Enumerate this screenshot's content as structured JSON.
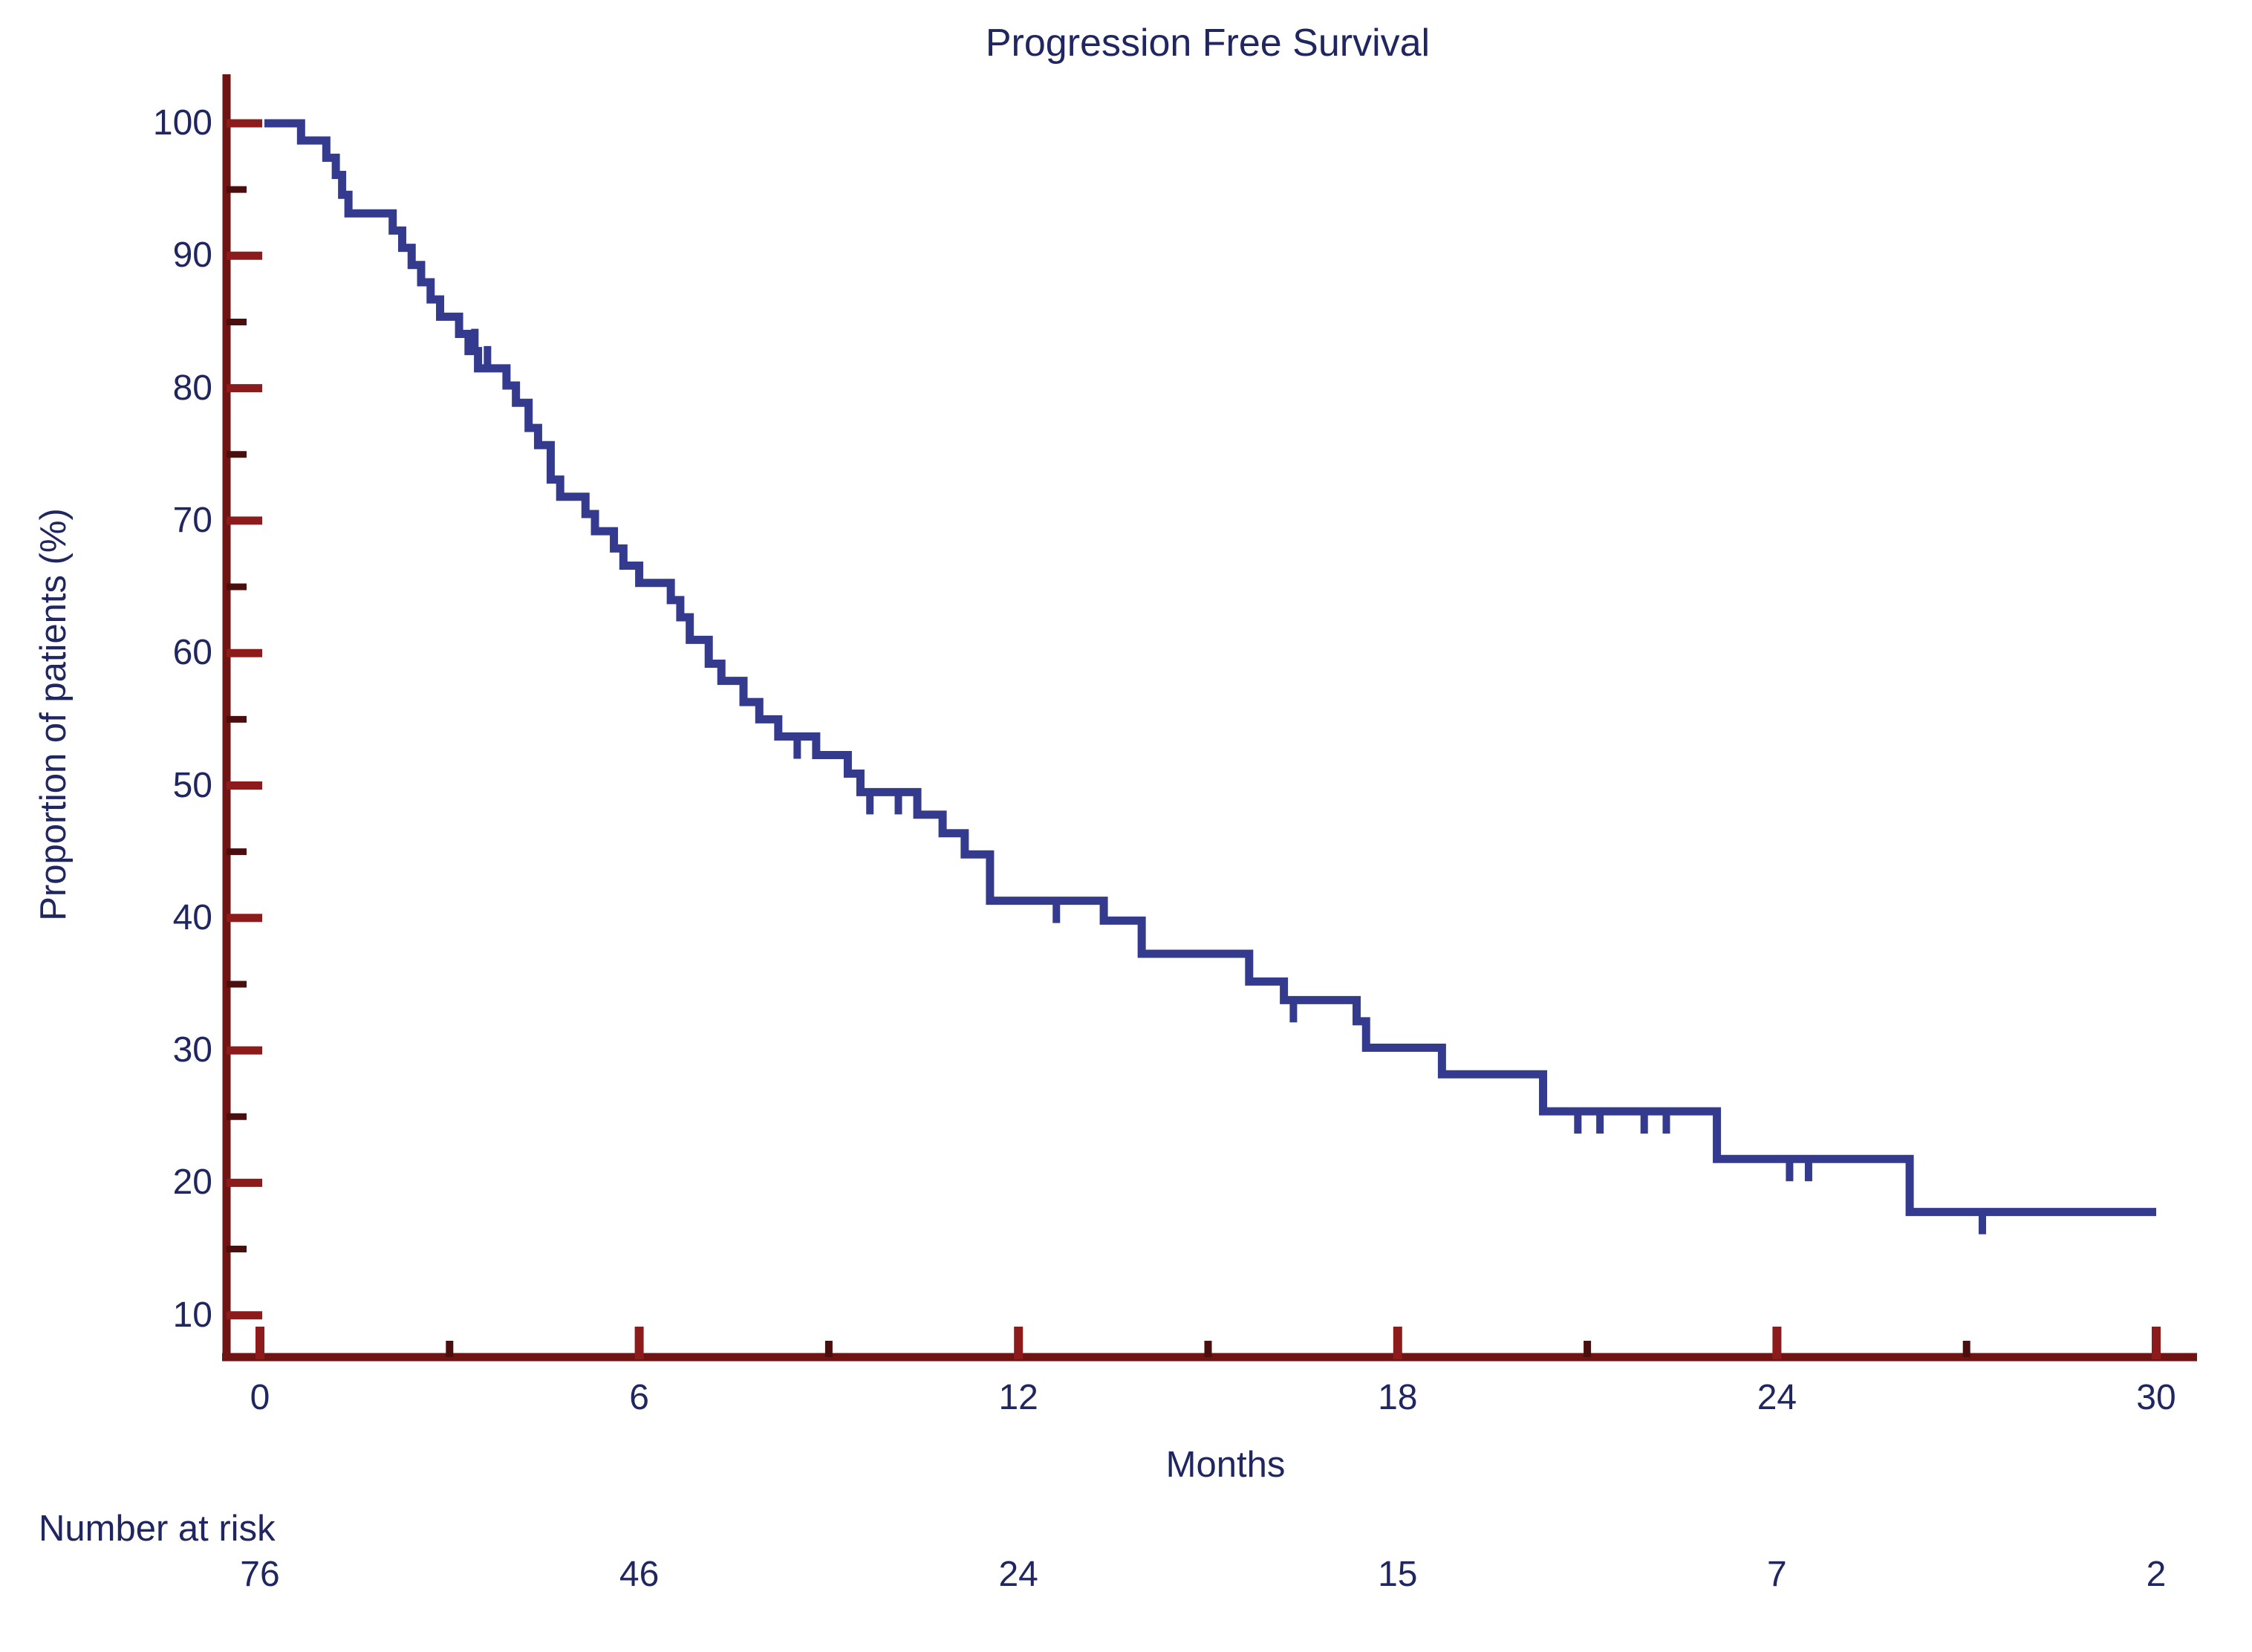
{
  "title": "Progression Free Survival",
  "y_axis": {
    "label": "Proportion of patients (%)",
    "major_ticks": [
      100,
      90,
      80,
      70,
      60,
      50,
      40,
      30,
      20,
      10
    ],
    "minor_ticks": [
      95,
      85,
      75,
      65,
      55,
      45,
      35,
      25,
      15
    ]
  },
  "x_axis": {
    "label": "Months",
    "major_ticks": [
      0,
      6,
      12,
      18,
      24,
      30
    ],
    "minor_ticks": [
      3,
      9,
      15,
      21,
      27
    ]
  },
  "number_at_risk": {
    "label": "Number at risk",
    "times": [
      0,
      6,
      12,
      18,
      24,
      30
    ],
    "values": [
      76,
      46,
      24,
      15,
      7,
      2
    ]
  },
  "colors": {
    "curve": "#343a8e",
    "axis": "#701313",
    "major_tick": "#8e1b1b",
    "minor_tick": "#4c0d0d",
    "text": "#20265f",
    "background": "#ffffff"
  },
  "chart_data": {
    "type": "line",
    "subtype": "kaplan-meier-step-curve",
    "title": "Progression Free Survival",
    "xlabel": "Months",
    "ylabel": "Proportion of patients (%)",
    "xlim": [
      0,
      30
    ],
    "ylim": [
      5,
      103
    ],
    "x_ticks": [
      0,
      6,
      12,
      18,
      24,
      30
    ],
    "y_ticks": [
      10,
      20,
      30,
      40,
      50,
      60,
      70,
      80,
      90,
      100
    ],
    "grid": false,
    "legend": "none",
    "steps_time_percent": [
      [
        0,
        100
      ],
      [
        0.65,
        98.7
      ],
      [
        1.05,
        97.4
      ],
      [
        1.2,
        96.1
      ],
      [
        1.3,
        94.6
      ],
      [
        1.4,
        93.2
      ],
      [
        2.1,
        91.9
      ],
      [
        2.25,
        90.6
      ],
      [
        2.4,
        89.3
      ],
      [
        2.55,
        88.0
      ],
      [
        2.7,
        86.7
      ],
      [
        2.85,
        85.4
      ],
      [
        3.15,
        84.1
      ],
      [
        3.3,
        82.8
      ],
      [
        3.45,
        81.5
      ],
      [
        3.9,
        80.2
      ],
      [
        4.05,
        78.9
      ],
      [
        4.25,
        77.0
      ],
      [
        4.4,
        75.7
      ],
      [
        4.6,
        73.1
      ],
      [
        4.75,
        71.8
      ],
      [
        5.15,
        70.5
      ],
      [
        5.3,
        69.2
      ],
      [
        5.6,
        67.9
      ],
      [
        5.75,
        66.6
      ],
      [
        6.0,
        65.3
      ],
      [
        6.5,
        64.0
      ],
      [
        6.65,
        62.7
      ],
      [
        6.8,
        61.0
      ],
      [
        7.1,
        59.2
      ],
      [
        7.3,
        57.9
      ],
      [
        7.65,
        56.3
      ],
      [
        7.9,
        55.0
      ],
      [
        8.2,
        53.7
      ],
      [
        8.8,
        52.3
      ],
      [
        9.3,
        50.9
      ],
      [
        9.5,
        49.5
      ],
      [
        10.4,
        47.8
      ],
      [
        10.8,
        46.4
      ],
      [
        11.15,
        44.8
      ],
      [
        11.55,
        41.3
      ],
      [
        13.35,
        39.8
      ],
      [
        13.95,
        37.3
      ],
      [
        15.65,
        35.2
      ],
      [
        16.2,
        33.8
      ],
      [
        17.35,
        32.2
      ],
      [
        17.5,
        30.2
      ],
      [
        18.7,
        28.2
      ],
      [
        20.3,
        25.4
      ],
      [
        23.05,
        21.8
      ],
      [
        26.1,
        17.8
      ],
      [
        30,
        17.8
      ]
    ],
    "censor_marks": [
      {
        "t": 3.4,
        "p": 82.8,
        "dir": "up"
      },
      {
        "t": 3.6,
        "p": 81.5,
        "dir": "up"
      },
      {
        "t": 8.5,
        "p": 53.7,
        "dir": "down"
      },
      {
        "t": 9.65,
        "p": 49.5,
        "dir": "down"
      },
      {
        "t": 10.1,
        "p": 49.5,
        "dir": "down"
      },
      {
        "t": 12.6,
        "p": 41.3,
        "dir": "down"
      },
      {
        "t": 16.35,
        "p": 33.8,
        "dir": "down"
      },
      {
        "t": 20.85,
        "p": 25.4,
        "dir": "down"
      },
      {
        "t": 21.2,
        "p": 25.4,
        "dir": "down"
      },
      {
        "t": 21.9,
        "p": 25.4,
        "dir": "down"
      },
      {
        "t": 22.25,
        "p": 25.4,
        "dir": "down"
      },
      {
        "t": 24.2,
        "p": 21.8,
        "dir": "down"
      },
      {
        "t": 24.5,
        "p": 21.8,
        "dir": "down"
      },
      {
        "t": 27.25,
        "p": 17.8,
        "dir": "down"
      }
    ],
    "number_at_risk": {
      "label": "Number at risk",
      "times": [
        0,
        6,
        12,
        18,
        24,
        30
      ],
      "values": [
        76,
        46,
        24,
        15,
        7,
        2
      ]
    }
  }
}
